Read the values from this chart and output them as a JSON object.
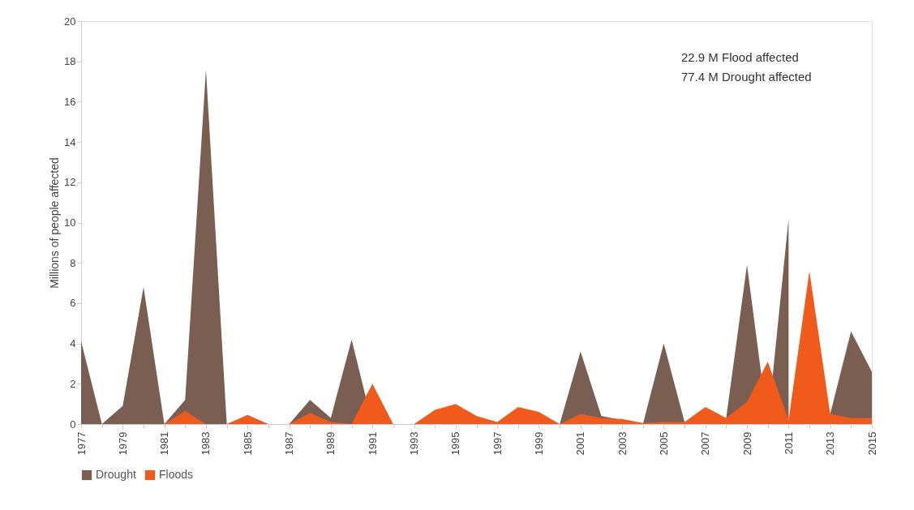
{
  "chart_data": {
    "type": "area",
    "ylabel": "Millions of people affected",
    "x": [
      1977,
      1978,
      1979,
      1980,
      1981,
      1982,
      1983,
      1984,
      1985,
      1986,
      1987,
      1988,
      1989,
      1990,
      1991,
      1992,
      1993,
      1994,
      1995,
      1996,
      1997,
      1998,
      1999,
      2000,
      2001,
      2002,
      2003,
      2004,
      2005,
      2006,
      2007,
      2008,
      2009,
      2010,
      2011,
      2012,
      2013,
      2014,
      2015
    ],
    "series": [
      {
        "name": "Drought",
        "color": "#7b5e52",
        "values": [
          4.1,
          0,
          0.9,
          6.8,
          0,
          1.2,
          17.6,
          0,
          0,
          0,
          0,
          1.2,
          0.3,
          4.2,
          0,
          0,
          0,
          0,
          0,
          0,
          0,
          0,
          0,
          0,
          3.6,
          0.4,
          0.2,
          0,
          4.0,
          0.1,
          0,
          0.3,
          7.9,
          0,
          10.2,
          null,
          0.5,
          4.6,
          2.6
        ]
      },
      {
        "name": "Floods",
        "color": "#f05a1a",
        "values": [
          0,
          0,
          0,
          0,
          0,
          0.65,
          0,
          0,
          0.45,
          0,
          0,
          0.55,
          0.1,
          0,
          2.0,
          0,
          0,
          0.7,
          1.0,
          0.4,
          0.1,
          0.85,
          0.6,
          0,
          0.5,
          0.3,
          0.25,
          0.05,
          0.1,
          0.1,
          0.85,
          0.3,
          1.1,
          3.1,
          0.2,
          7.6,
          0.5,
          0.3,
          0.3
        ]
      }
    ],
    "ylim": [
      0,
      20
    ],
    "yticks": [
      0,
      2,
      4,
      6,
      8,
      10,
      12,
      14,
      16,
      18,
      20
    ],
    "xlim": [
      1977,
      2015
    ],
    "xticks": [
      1977,
      {
        "value": 1978,
        "label": null
      },
      1979,
      {
        "value": 1980,
        "label": null
      },
      1981,
      {
        "value": 1982,
        "label": null
      },
      1983,
      {
        "value": 1984,
        "label": null
      },
      1985,
      {
        "value": 1986,
        "label": null
      },
      1987,
      {
        "value": 1988,
        "label": null
      },
      1989,
      {
        "value": 1990,
        "label": null
      },
      1991,
      {
        "value": 1992,
        "label": null
      },
      1993,
      {
        "value": 1994,
        "label": null
      },
      1995,
      {
        "value": 1996,
        "label": null
      },
      1997,
      {
        "value": 1998,
        "label": null
      },
      1999,
      {
        "value": 2000,
        "label": null
      },
      2001,
      {
        "value": 2002,
        "label": null
      },
      2003,
      {
        "value": 2004,
        "label": null
      },
      2005,
      {
        "value": 2006,
        "label": null
      },
      2007,
      {
        "value": 2008,
        "label": null
      },
      2009,
      {
        "value": 2010,
        "label": null
      },
      2011,
      {
        "value": 2012,
        "label": null
      },
      2013,
      {
        "value": 2014,
        "label": null
      },
      2015
    ],
    "annotations": [
      "22.9 M Flood affected",
      "77.4 M Drought affected"
    ],
    "legend": "bottom",
    "grid": false
  }
}
